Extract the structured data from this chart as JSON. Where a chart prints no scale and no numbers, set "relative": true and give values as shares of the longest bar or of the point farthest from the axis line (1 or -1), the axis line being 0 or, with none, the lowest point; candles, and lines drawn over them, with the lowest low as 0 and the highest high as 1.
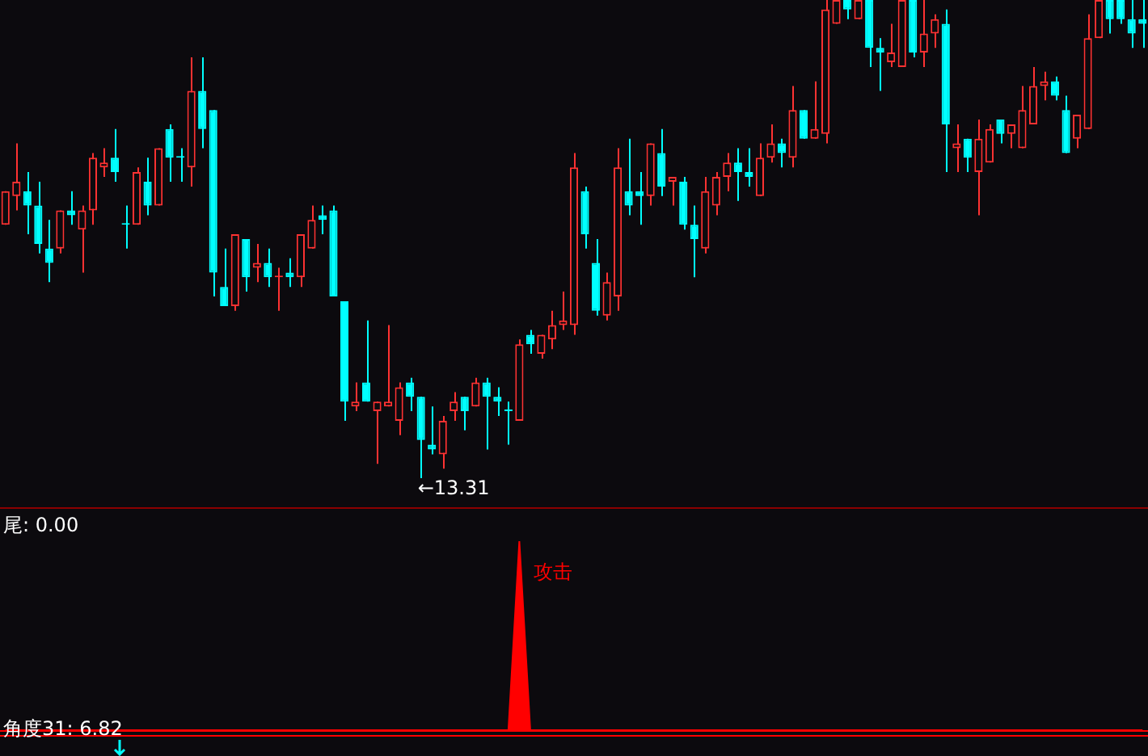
{
  "chart_data": [
    {
      "type": "candlestick",
      "relative": true,
      "categories": [
        null,
        null,
        null,
        null,
        null,
        null,
        null,
        null,
        null,
        null,
        null,
        null,
        null,
        null,
        null,
        null,
        null,
        null,
        null,
        null,
        null,
        null,
        null,
        null,
        null,
        null,
        null,
        null,
        null,
        null,
        null,
        null,
        null,
        null,
        null,
        null,
        null,
        null,
        null,
        null,
        null,
        null,
        null,
        null,
        null,
        null,
        null,
        null,
        null,
        null,
        null,
        null,
        null,
        null,
        null,
        null,
        null,
        null,
        null,
        null,
        null,
        null,
        null,
        null,
        null,
        null,
        null,
        null,
        null,
        null,
        null,
        null,
        null,
        null,
        null,
        null,
        null,
        null,
        null,
        null,
        null,
        null,
        null,
        null,
        null,
        null,
        null,
        null,
        null,
        null,
        null,
        null,
        null,
        null,
        null,
        null,
        null,
        null,
        null,
        null,
        null,
        null,
        null,
        null,
        null
      ],
      "ohlc": [
        [
          0.53,
          0.6,
          0.53,
          0.6
        ],
        [
          0.59,
          0.7,
          0.56,
          0.62
        ],
        [
          0.6,
          0.64,
          0.51,
          0.57
        ],
        [
          0.57,
          0.62,
          0.47,
          0.49
        ],
        [
          0.48,
          0.54,
          0.41,
          0.45
        ],
        [
          0.48,
          0.56,
          0.47,
          0.56
        ],
        [
          0.56,
          0.6,
          0.53,
          0.55
        ],
        [
          0.52,
          0.57,
          0.43,
          0.56
        ],
        [
          0.56,
          0.68,
          0.53,
          0.67
        ],
        [
          0.65,
          0.69,
          0.63,
          0.66
        ],
        [
          0.67,
          0.73,
          0.62,
          0.64
        ],
        [
          0.53,
          0.57,
          0.48,
          0.53
        ],
        [
          0.53,
          0.65,
          0.53,
          0.64
        ],
        [
          0.62,
          0.67,
          0.55,
          0.57
        ],
        [
          0.57,
          0.69,
          0.57,
          0.69
        ],
        [
          0.73,
          0.74,
          0.62,
          0.67
        ],
        [
          0.67,
          0.69,
          0.62,
          0.67
        ],
        [
          0.65,
          0.88,
          0.61,
          0.81
        ],
        [
          0.81,
          0.88,
          0.69,
          0.73
        ],
        [
          0.77,
          0.77,
          0.38,
          0.43
        ],
        [
          0.4,
          0.48,
          0.36,
          0.36
        ],
        [
          0.36,
          0.51,
          0.35,
          0.51
        ],
        [
          0.5,
          0.5,
          0.39,
          0.42
        ],
        [
          0.44,
          0.49,
          0.41,
          0.45
        ],
        [
          0.45,
          0.48,
          0.4,
          0.42
        ],
        [
          0.42,
          0.44,
          0.35,
          0.42
        ],
        [
          0.43,
          0.46,
          0.4,
          0.42
        ],
        [
          0.42,
          0.51,
          0.4,
          0.51
        ],
        [
          0.48,
          0.57,
          0.48,
          0.54
        ],
        [
          0.55,
          0.57,
          0.51,
          0.54
        ],
        [
          0.56,
          0.57,
          0.38,
          0.38
        ],
        [
          0.37,
          0.37,
          0.12,
          0.16
        ],
        [
          0.15,
          0.2,
          0.14,
          0.16
        ],
        [
          0.2,
          0.33,
          0.16,
          0.16
        ],
        [
          0.14,
          0.16,
          0.03,
          0.16
        ],
        [
          0.15,
          0.32,
          0.15,
          0.16
        ],
        [
          0.12,
          0.2,
          0.09,
          0.19
        ],
        [
          0.2,
          0.21,
          0.14,
          0.17
        ],
        [
          0.17,
          0.17,
          0.0,
          0.08
        ],
        [
          0.07,
          0.15,
          0.05,
          0.06
        ],
        [
          0.05,
          0.13,
          0.02,
          0.12
        ],
        [
          0.14,
          0.18,
          0.12,
          0.16
        ],
        [
          0.17,
          0.17,
          0.1,
          0.14
        ],
        [
          0.15,
          0.21,
          0.15,
          0.2
        ],
        [
          0.2,
          0.21,
          0.06,
          0.17
        ],
        [
          0.17,
          0.19,
          0.13,
          0.16
        ],
        [
          0.14,
          0.16,
          0.07,
          0.14
        ],
        [
          0.12,
          0.29,
          0.12,
          0.28
        ],
        [
          0.3,
          0.31,
          0.26,
          0.28
        ],
        [
          0.26,
          0.3,
          0.25,
          0.3
        ],
        [
          0.29,
          0.35,
          0.27,
          0.32
        ],
        [
          0.32,
          0.39,
          0.31,
          0.33
        ],
        [
          0.32,
          0.68,
          0.3,
          0.65
        ],
        [
          0.6,
          0.61,
          0.48,
          0.51
        ],
        [
          0.45,
          0.5,
          0.34,
          0.35
        ],
        [
          0.34,
          0.43,
          0.33,
          0.41
        ],
        [
          0.38,
          0.69,
          0.35,
          0.65
        ],
        [
          0.6,
          0.71,
          0.55,
          0.57
        ],
        [
          0.6,
          0.64,
          0.53,
          0.59
        ],
        [
          0.59,
          0.7,
          0.57,
          0.7
        ],
        [
          0.68,
          0.73,
          0.59,
          0.61
        ],
        [
          0.62,
          0.63,
          0.57,
          0.63
        ],
        [
          0.62,
          0.63,
          0.52,
          0.53
        ],
        [
          0.53,
          0.57,
          0.42,
          0.5
        ],
        [
          0.48,
          0.63,
          0.47,
          0.6
        ],
        [
          0.57,
          0.64,
          0.55,
          0.63
        ],
        [
          0.63,
          0.68,
          0.6,
          0.66
        ],
        [
          0.66,
          0.69,
          0.58,
          0.64
        ],
        [
          0.64,
          0.69,
          0.61,
          0.63
        ],
        [
          0.59,
          0.7,
          0.59,
          0.67
        ],
        [
          0.67,
          0.74,
          0.66,
          0.7
        ],
        [
          0.7,
          0.71,
          0.65,
          0.68
        ],
        [
          0.67,
          0.82,
          0.65,
          0.77
        ],
        [
          0.77,
          0.77,
          0.71,
          0.71
        ],
        [
          0.71,
          0.83,
          0.71,
          0.73
        ],
        [
          0.72,
          1.0,
          0.7,
          0.98
        ],
        [
          0.95,
          1.0,
          0.95,
          1.0
        ],
        [
          1.0,
          1.0,
          0.96,
          0.98
        ],
        [
          0.96,
          1.0,
          0.96,
          1.0
        ],
        [
          1.0,
          1.0,
          0.86,
          0.9
        ],
        [
          0.9,
          0.92,
          0.81,
          0.89
        ],
        [
          0.87,
          0.95,
          0.86,
          0.89
        ],
        [
          0.86,
          1.0,
          0.86,
          1.0
        ],
        [
          1.0,
          1.0,
          0.88,
          0.89
        ],
        [
          0.89,
          1.0,
          0.86,
          0.93
        ],
        [
          0.93,
          0.97,
          0.9,
          0.96
        ],
        [
          0.95,
          0.98,
          0.64,
          0.74
        ],
        [
          0.69,
          0.74,
          0.64,
          0.7
        ],
        [
          0.71,
          0.71,
          0.64,
          0.67
        ],
        [
          0.64,
          0.75,
          0.55,
          0.71
        ],
        [
          0.66,
          0.74,
          0.66,
          0.73
        ],
        [
          0.75,
          0.75,
          0.7,
          0.72
        ],
        [
          0.72,
          0.74,
          0.69,
          0.74
        ],
        [
          0.69,
          0.82,
          0.69,
          0.77
        ],
        [
          0.74,
          0.86,
          0.74,
          0.82
        ],
        [
          0.82,
          0.85,
          0.79,
          0.83
        ],
        [
          0.83,
          0.84,
          0.79,
          0.8
        ],
        [
          0.77,
          0.8,
          0.68,
          0.68
        ],
        [
          0.71,
          0.76,
          0.69,
          0.76
        ],
        [
          0.73,
          0.97,
          0.73,
          0.92
        ],
        [
          0.92,
          1.0,
          0.92,
          1.0
        ],
        [
          1.0,
          1.0,
          0.93,
          0.96
        ],
        [
          1.0,
          1.0,
          0.95,
          0.96
        ],
        [
          0.96,
          1.0,
          0.9,
          0.93
        ],
        [
          0.96,
          1.0,
          0.9,
          0.95
        ]
      ],
      "colors": [
        "#ff3232",
        "#ff3232",
        "#00ffff",
        "#00ffff",
        "#00ffff",
        "#ff3232",
        "#00ffff",
        "#ff3232",
        "#ff3232",
        "#ff3232",
        "#00ffff",
        "#00ffff",
        "#ff3232",
        "#00ffff",
        "#ff3232",
        "#00ffff",
        "#00ffff",
        "#ff3232",
        "#00ffff",
        "#00ffff",
        "#00ffff",
        "#ff3232",
        "#00ffff",
        "#ff3232",
        "#00ffff",
        "#ff3232",
        "#00ffff",
        "#ff3232",
        "#ff3232",
        "#00ffff",
        "#00ffff",
        "#00ffff",
        "#ff3232",
        "#00ffff",
        "#ff3232",
        "#ff3232",
        "#ff3232",
        "#00ffff",
        "#00ffff",
        "#00ffff",
        "#ff3232",
        "#ff3232",
        "#00ffff",
        "#ff3232",
        "#00ffff",
        "#00ffff",
        "#00ffff",
        "#ff3232",
        "#00ffff",
        "#ff3232",
        "#ff3232",
        "#ff3232",
        "#ff3232",
        "#00ffff",
        "#00ffff",
        "#ff3232",
        "#ff3232",
        "#00ffff",
        "#00ffff",
        "#ff3232",
        "#00ffff",
        "#ff3232",
        "#00ffff",
        "#00ffff",
        "#ff3232",
        "#ff3232",
        "#ff3232",
        "#00ffff",
        "#00ffff",
        "#ff3232",
        "#ff3232",
        "#00ffff",
        "#ff3232",
        "#00ffff",
        "#ff3232",
        "#ff3232",
        "#ff3232",
        "#00ffff",
        "#ff3232",
        "#00ffff",
        "#00ffff",
        "#ff3232",
        "#ff3232",
        "#00ffff",
        "#ff3232",
        "#ff3232",
        "#00ffff",
        "#ff3232",
        "#00ffff",
        "#ff3232",
        "#ff3232",
        "#00ffff",
        "#ff3232",
        "#ff3232",
        "#ff3232",
        "#ff3232",
        "#00ffff",
        "#00ffff",
        "#ff3232",
        "#ff3232",
        "#ff3232",
        "#00ffff",
        "#00ffff",
        "#00ffff",
        "#00ffff"
      ],
      "annotations": [
        "←13.31"
      ]
    },
    {
      "type": "area",
      "relative": true,
      "color": "#ff0000",
      "categories": [
        null,
        null,
        null,
        null,
        null,
        null,
        null,
        null,
        null,
        null,
        null,
        null,
        null,
        null,
        null,
        null,
        null,
        null,
        null,
        null,
        null,
        null,
        null,
        null,
        null,
        null,
        null,
        null,
        null,
        null,
        null,
        null,
        null,
        null,
        null,
        null,
        null,
        null,
        null,
        null,
        null,
        null,
        null,
        null,
        null,
        null,
        null,
        null,
        null,
        null,
        null,
        null,
        null,
        null,
        null,
        null,
        null,
        null,
        null,
        null,
        null,
        null,
        null,
        null,
        null,
        null,
        null,
        null,
        null,
        null,
        null,
        null,
        null,
        null,
        null,
        null,
        null,
        null,
        null,
        null,
        null,
        null,
        null,
        null,
        null,
        null,
        null,
        null,
        null,
        null,
        null,
        null,
        null,
        null,
        null,
        null,
        null,
        null,
        null,
        null,
        null,
        null,
        null,
        null,
        null
      ],
      "values": [
        0,
        0,
        0,
        0,
        0,
        0,
        0,
        0,
        0,
        0,
        0,
        0,
        0,
        0,
        0,
        0,
        0,
        0,
        0,
        0,
        0,
        0,
        0,
        0,
        0,
        0,
        0,
        0,
        0,
        0,
        0,
        0,
        0,
        0,
        0,
        0,
        0,
        0,
        0,
        0,
        0,
        0,
        0,
        0,
        0,
        0,
        0,
        1,
        0,
        0,
        0,
        0,
        0,
        0,
        0,
        0,
        0,
        0,
        0,
        0,
        0,
        0,
        0,
        0,
        0,
        0,
        0,
        0,
        0,
        0,
        0,
        0,
        0,
        0,
        0,
        0,
        0,
        0,
        0,
        0,
        0,
        0,
        0,
        0,
        0,
        0,
        0,
        0,
        0,
        0,
        0,
        0,
        0,
        0,
        0,
        0,
        0,
        0,
        0,
        0,
        0,
        0,
        0,
        0,
        0
      ],
      "annotations": [
        "攻击",
        "尾: 0.00",
        "角度31: 6.82"
      ]
    }
  ]
}
